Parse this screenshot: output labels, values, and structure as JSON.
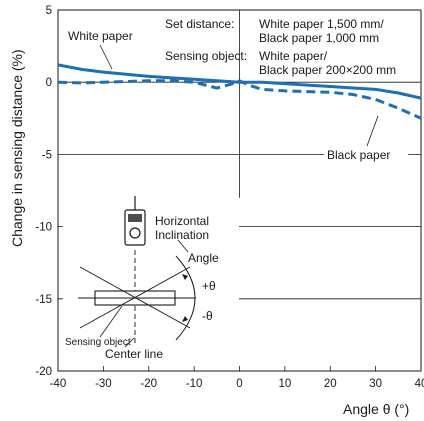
{
  "chart_data": {
    "type": "line",
    "xlabel": "Angle θ (°)",
    "ylabel": "Change in sensing distance (%)",
    "xlim": [
      -40,
      40
    ],
    "ylim": [
      -20,
      5
    ],
    "x_ticks": [
      -40,
      -30,
      -20,
      -10,
      0,
      10,
      20,
      30,
      40
    ],
    "y_ticks": [
      5,
      0,
      -5,
      -10,
      -15,
      -20
    ],
    "x_tick_labels": [
      "-40",
      "-30",
      "-20",
      "-10",
      "0",
      "10",
      "20",
      "30",
      "40"
    ],
    "y_tick_labels": [
      "5",
      "0",
      "-5",
      "-10",
      "-15",
      "-20"
    ],
    "grid": false,
    "series": [
      {
        "name": "White paper",
        "style": "solid",
        "color": "#1f6fb5",
        "x": [
          -40,
          -35,
          -30,
          -25,
          -20,
          -15,
          -10,
          -5,
          0,
          5,
          10,
          15,
          20,
          25,
          30,
          35,
          40
        ],
        "y": [
          1.2,
          0.9,
          0.7,
          0.55,
          0.4,
          0.3,
          0.2,
          0.1,
          0.0,
          0.0,
          -0.1,
          -0.2,
          -0.3,
          -0.4,
          -0.5,
          -0.75,
          -1.1
        ]
      },
      {
        "name": "Black paper",
        "style": "dashed",
        "color": "#1f6fb5",
        "x": [
          -40,
          -35,
          -30,
          -25,
          -20,
          -15,
          -10,
          -5,
          -2,
          0,
          2,
          5,
          10,
          15,
          20,
          25,
          30,
          35,
          40
        ],
        "y": [
          0.0,
          -0.05,
          0.0,
          0.05,
          0.1,
          0.1,
          0.0,
          -0.4,
          -0.15,
          0.1,
          -0.2,
          -0.5,
          -0.6,
          -0.65,
          -0.7,
          -0.85,
          -1.2,
          -1.8,
          -2.5
        ]
      }
    ],
    "annotations": {
      "white_label": "White paper",
      "black_label": "Black paper",
      "set_distance_label": "Set distance:",
      "set_distance_line1": "White paper 1,500 mm/",
      "set_distance_line2": "Black paper 1,000 mm",
      "sensing_object_label": "Sensing object:",
      "sensing_object_line1": "White paper/",
      "sensing_object_line2": "Black paper 200×200 mm",
      "horizontal": "Horizontal",
      "inclination": "Inclination",
      "angle": "Angle",
      "plus_theta": "+θ",
      "minus_theta": "-θ",
      "sensing_object": "Sensing object",
      "center_line": "Center line"
    }
  }
}
